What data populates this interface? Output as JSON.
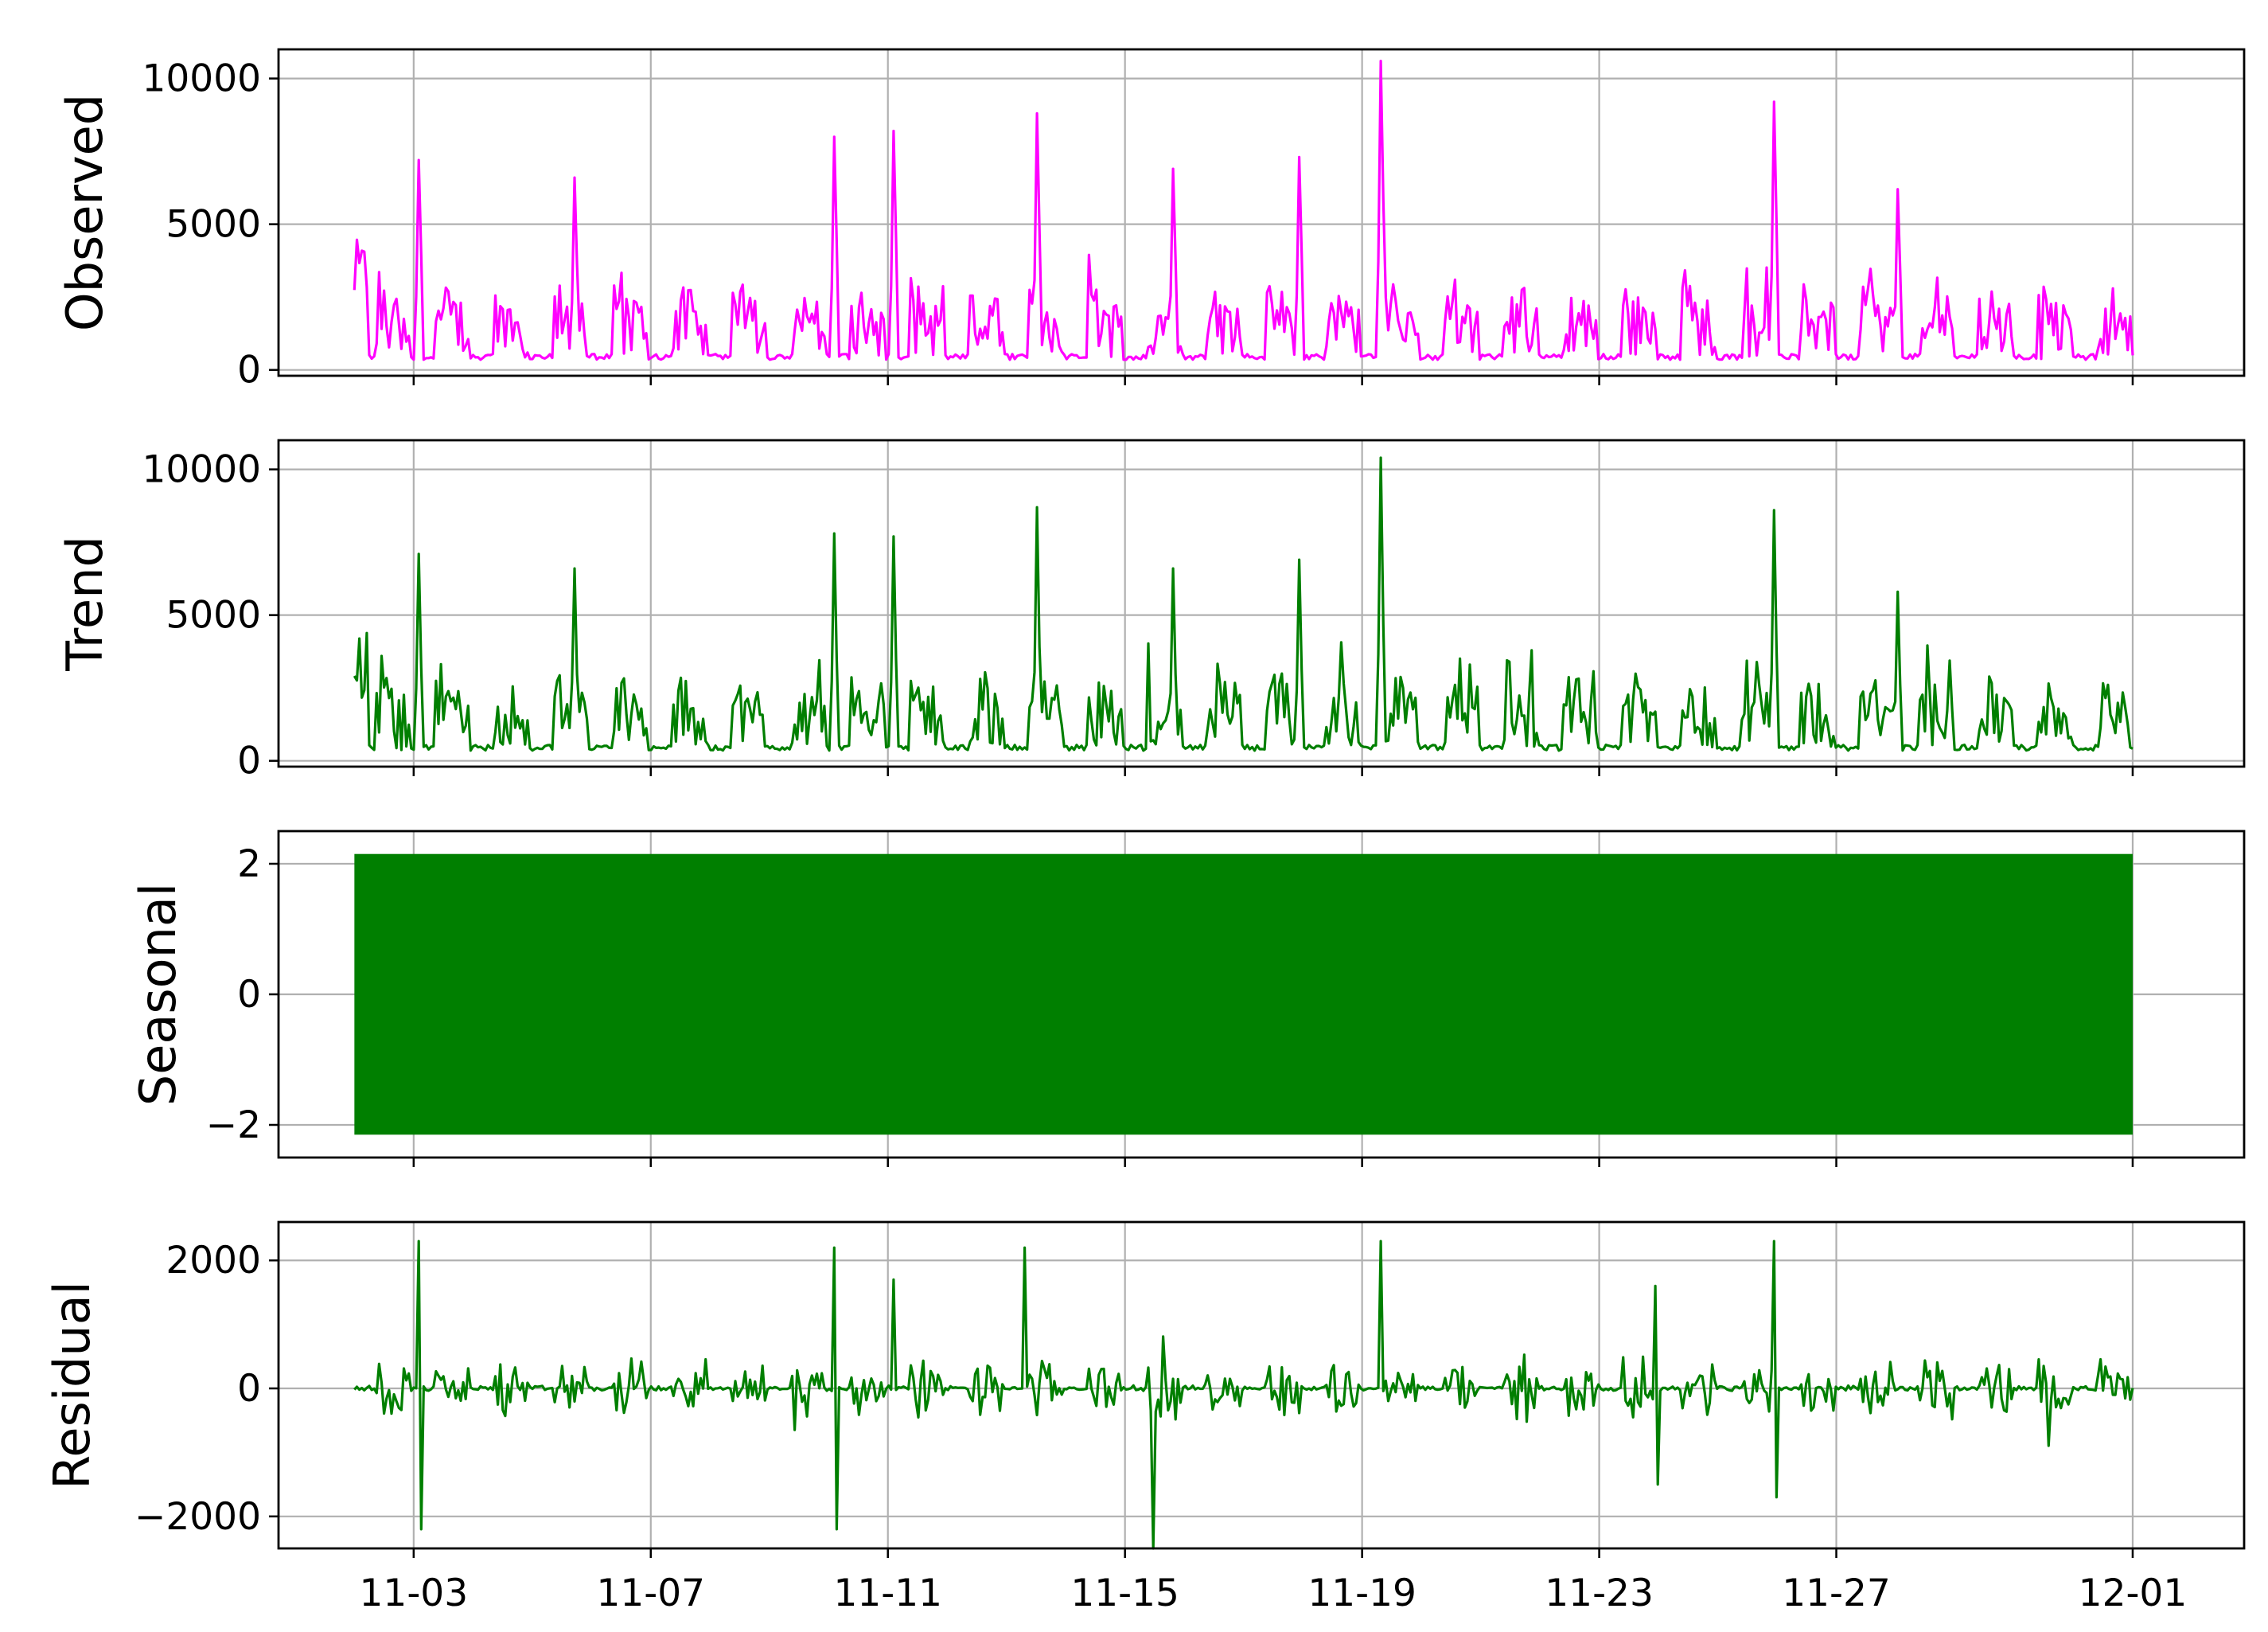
{
  "colors": {
    "observed": "#ff00ff",
    "component": "#007f00",
    "grid": "#b0b0b0",
    "frame": "#000000"
  },
  "chart_data": [
    {
      "type": "line",
      "ylabel": "Observed",
      "series": [
        {
          "color": "#ff00ff",
          "values": []
        }
      ],
      "yticks": [
        0,
        5000,
        10000
      ],
      "ytick_labels": [
        "0",
        "5000",
        "10000"
      ],
      "ylim": [
        -200,
        11000
      ],
      "grid": true,
      "xticks_shown": false,
      "data_shape": {
        "baseline": 350,
        "typical_high": 2500,
        "spikes": [
          [
            2.1,
            7200
          ],
          [
            4.7,
            6600
          ],
          [
            9.1,
            8000
          ],
          [
            10.1,
            8200
          ],
          [
            12.5,
            8800
          ],
          [
            14.8,
            6900
          ],
          [
            16.9,
            7300
          ],
          [
            18.3,
            10600
          ],
          [
            24.9,
            9200
          ],
          [
            27.0,
            6200
          ]
        ]
      }
    },
    {
      "type": "line",
      "ylabel": "Trend",
      "series": [
        {
          "color": "#007f00",
          "values": []
        }
      ],
      "yticks": [
        0,
        5000,
        10000
      ],
      "ytick_labels": [
        "0",
        "5000",
        "10000"
      ],
      "ylim": [
        -200,
        11000
      ],
      "grid": true,
      "xticks_shown": false,
      "data_shape": {
        "baseline": 350,
        "typical_high": 2500,
        "spikes": [
          [
            2.1,
            7100
          ],
          [
            4.7,
            6600
          ],
          [
            9.1,
            7800
          ],
          [
            10.1,
            7700
          ],
          [
            12.5,
            8700
          ],
          [
            14.8,
            6600
          ],
          [
            16.9,
            6900
          ],
          [
            18.3,
            10400
          ],
          [
            24.9,
            8600
          ],
          [
            27.0,
            5800
          ]
        ]
      }
    },
    {
      "type": "area",
      "ylabel": "Seasonal",
      "series": [
        {
          "color": "#007f00",
          "values": []
        }
      ],
      "yticks": [
        -2,
        0,
        2
      ],
      "ytick_labels": [
        "−2",
        "0",
        "2"
      ],
      "ylim": [
        -2.5,
        2.5
      ],
      "grid": true,
      "xticks_shown": false,
      "data_shape": {
        "band_min": -2.15,
        "band_max": 2.15
      }
    },
    {
      "type": "line",
      "ylabel": "Residual",
      "series": [
        {
          "color": "#007f00",
          "values": []
        }
      ],
      "yticks": [
        -2000,
        0,
        2000
      ],
      "ytick_labels": [
        "−2000",
        "0",
        "2000"
      ],
      "ylim": [
        -2500,
        2600
      ],
      "grid": true,
      "xticks_shown": true,
      "data_shape": {
        "typical_amp": 450,
        "spikes": [
          [
            2.1,
            2300
          ],
          [
            2.1,
            -2200
          ],
          [
            9.1,
            2200
          ],
          [
            9.1,
            -2200
          ],
          [
            10.1,
            1700
          ],
          [
            12.3,
            2200
          ],
          [
            14.4,
            -2500
          ],
          [
            18.3,
            2300
          ],
          [
            22.9,
            1600
          ],
          [
            22.9,
            -1500
          ],
          [
            24.9,
            2300
          ],
          [
            24.9,
            -1700
          ]
        ]
      }
    }
  ],
  "x_axis": {
    "type": "date",
    "range": [
      "10-31",
      "12-01"
    ],
    "data_start": "11-01",
    "data_end": "12-01",
    "tick_labels": [
      "11-03",
      "11-07",
      "11-11",
      "11-15",
      "11-19",
      "11-23",
      "11-27",
      "12-01"
    ]
  }
}
